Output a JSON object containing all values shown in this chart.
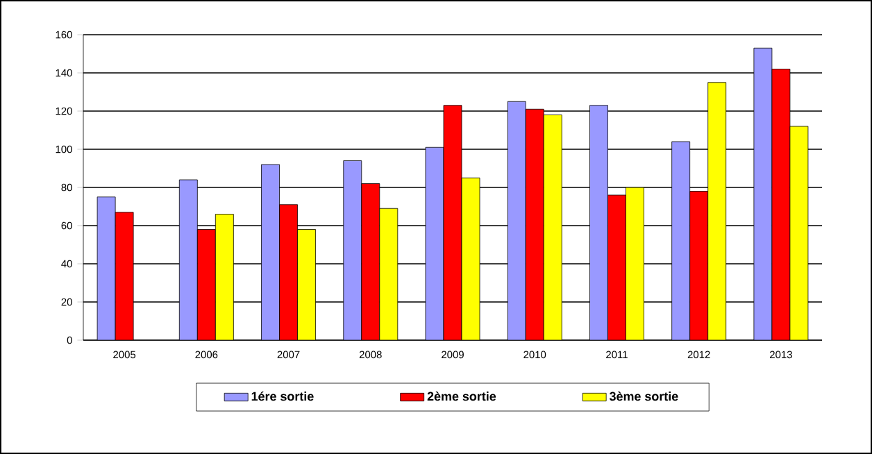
{
  "chart_data": {
    "type": "bar",
    "categories": [
      "2005",
      "2006",
      "2007",
      "2008",
      "2009",
      "2010",
      "2011",
      "2012",
      "2013"
    ],
    "series": [
      {
        "name": "1ére sortie",
        "color": "#9999ff",
        "values": [
          75,
          84,
          92,
          94,
          101,
          125,
          123,
          104,
          153
        ]
      },
      {
        "name": "2ème sortie",
        "color": "#ff0000",
        "values": [
          67,
          58,
          71,
          82,
          123,
          121,
          76,
          78,
          142
        ]
      },
      {
        "name": "3ème sortie",
        "color": "#ffff00",
        "values": [
          null,
          66,
          58,
          69,
          85,
          118,
          80,
          135,
          112
        ]
      }
    ],
    "ylim": [
      0,
      160
    ],
    "yticks": [
      0,
      20,
      40,
      60,
      80,
      100,
      120,
      140,
      160
    ],
    "grid": "y",
    "legend": "bottom"
  }
}
